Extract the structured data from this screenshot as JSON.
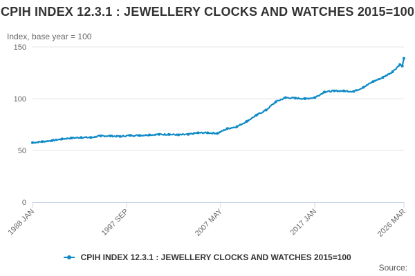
{
  "chart": {
    "title": "CPIH INDEX 12.3.1 : JEWELLERY CLOCKS AND WATCHES 2015=100",
    "subtitle": "Index, base year = 100",
    "credits": "Source:",
    "series_color": "#0f8ac6"
  },
  "chart_data": {
    "type": "line",
    "title": "CPIH INDEX 12.3.1 : JEWELLERY CLOCKS AND WATCHES 2015=100",
    "ylabel": "Index, base year = 100",
    "xlabel": "",
    "ylim": [
      0,
      150
    ],
    "yticks": [
      0,
      50,
      100,
      150
    ],
    "xticks": [
      "1988 JAN",
      "1997 SEP",
      "2007 MAY",
      "2017 JAN",
      "2026 MAR"
    ],
    "grid": "horizontal",
    "legend": "bottom",
    "series": [
      {
        "name": "CPIH INDEX 12.3.1 : JEWELLERY CLOCKS AND WATCHES 2015=100",
        "points": [
          [
            "1988-01",
            57.5
          ],
          [
            "1989-01",
            58.5
          ],
          [
            "1990-01",
            59.5
          ],
          [
            "1991-01",
            61.0
          ],
          [
            "1992-01",
            62.0
          ],
          [
            "1993-01",
            62.5
          ],
          [
            "1994-01",
            62.5
          ],
          [
            "1995-01",
            64.0
          ],
          [
            "1996-01",
            64.0
          ],
          [
            "1997-01",
            63.5
          ],
          [
            "1998-01",
            64.5
          ],
          [
            "1999-01",
            64.5
          ],
          [
            "2000-01",
            65.0
          ],
          [
            "2001-01",
            65.5
          ],
          [
            "2002-01",
            65.5
          ],
          [
            "2003-01",
            65.0
          ],
          [
            "2004-01",
            65.5
          ],
          [
            "2005-01",
            67.0
          ],
          [
            "2006-01",
            67.0
          ],
          [
            "2007-01",
            66.5
          ],
          [
            "2008-01",
            71.0
          ],
          [
            "2009-01",
            73.0
          ],
          [
            "2010-01",
            78.0
          ],
          [
            "2011-01",
            84.0
          ],
          [
            "2012-01",
            89.0
          ],
          [
            "2013-01",
            97.0
          ],
          [
            "2014-01",
            101.0
          ],
          [
            "2015-01",
            100.5
          ],
          [
            "2016-01",
            100.0
          ],
          [
            "2017-01",
            101.0
          ],
          [
            "2018-01",
            106.5
          ],
          [
            "2019-01",
            107.5
          ],
          [
            "2020-01",
            107.5
          ],
          [
            "2021-01",
            107.0
          ],
          [
            "2022-01",
            111.0
          ],
          [
            "2023-01",
            116.5
          ],
          [
            "2024-01",
            120.5
          ],
          [
            "2025-01",
            126.0
          ],
          [
            "2025-10",
            133.0
          ],
          [
            "2026-01",
            131.5
          ],
          [
            "2026-03",
            139.0
          ]
        ]
      }
    ]
  }
}
